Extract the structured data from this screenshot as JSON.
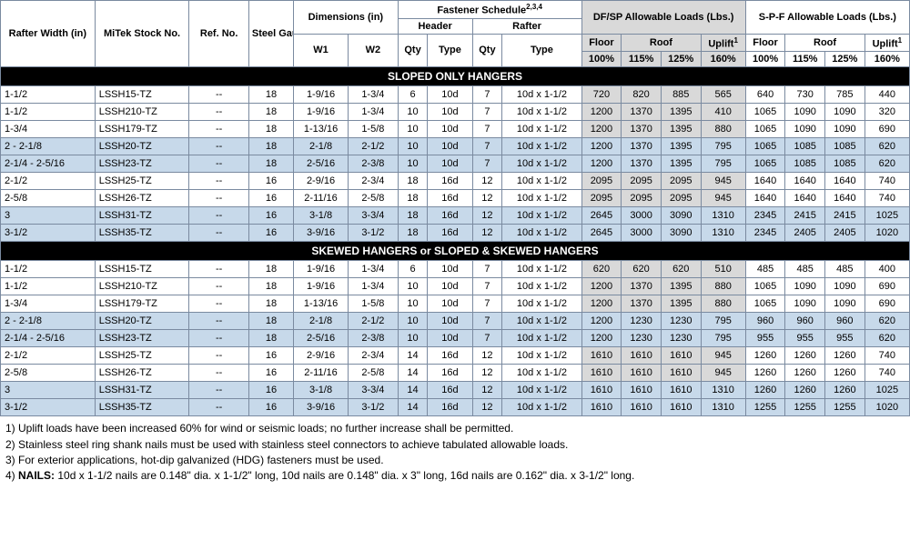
{
  "colWidths": [
    "95",
    "95",
    "60",
    "45",
    "55",
    "50",
    "30",
    "45",
    "30",
    "80",
    "40",
    "40",
    "40",
    "45",
    "40",
    "40",
    "40",
    "45"
  ],
  "header": {
    "l1": {
      "rafterWidth": "Rafter Width (in)",
      "mitek": "MiTek Stock No.",
      "refNo": "Ref. No.",
      "steelGauge": "Steel Gauge",
      "dimensions": "Dimensions (in)",
      "fastener": "Fastener Schedule",
      "fastenerSup": "2,3,4",
      "dfsp": "DF/SP Allowable Loads (Lbs.)",
      "spf": "S-P-F Allowable Loads (Lbs.)"
    },
    "l2": {
      "w1": "W1",
      "w2": "W2",
      "header": "Header",
      "rafter": "Rafter",
      "floor": "Floor",
      "roof": "Roof",
      "uplift": "Uplift",
      "upliftSup": "1"
    },
    "l3": {
      "qty": "Qty",
      "type": "Type",
      "p100": "100%",
      "p115": "115%",
      "p125": "125%",
      "p160": "160%"
    }
  },
  "sections": [
    {
      "title": "SLOPED ONLY HANGERS",
      "rows": [
        {
          "shade": "",
          "cells": [
            "1-1/2",
            "LSSH15-TZ",
            "--",
            "18",
            "1-9/16",
            "1-3/4",
            "6",
            "10d",
            "7",
            "10d x 1-1/2",
            "720",
            "820",
            "885",
            "565",
            "640",
            "730",
            "785",
            "440"
          ]
        },
        {
          "shade": "",
          "cells": [
            "1-1/2",
            "LSSH210-TZ",
            "--",
            "18",
            "1-9/16",
            "1-3/4",
            "10",
            "10d",
            "7",
            "10d x 1-1/2",
            "1200",
            "1370",
            "1395",
            "410",
            "1065",
            "1090",
            "1090",
            "320"
          ]
        },
        {
          "shade": "",
          "cells": [
            "1-3/4",
            "LSSH179-TZ",
            "--",
            "18",
            "1-13/16",
            "1-5/8",
            "10",
            "10d",
            "7",
            "10d x 1-1/2",
            "1200",
            "1370",
            "1395",
            "880",
            "1065",
            "1090",
            "1090",
            "690"
          ]
        },
        {
          "shade": "blue",
          "cells": [
            "2 - 2-1/8",
            "LSSH20-TZ",
            "--",
            "18",
            "2-1/8",
            "2-1/2",
            "10",
            "10d",
            "7",
            "10d x 1-1/2",
            "1200",
            "1370",
            "1395",
            "795",
            "1065",
            "1085",
            "1085",
            "620"
          ]
        },
        {
          "shade": "blue",
          "cells": [
            "2-1/4 - 2-5/16",
            "LSSH23-TZ",
            "--",
            "18",
            "2-5/16",
            "2-3/8",
            "10",
            "10d",
            "7",
            "10d x 1-1/2",
            "1200",
            "1370",
            "1395",
            "795",
            "1065",
            "1085",
            "1085",
            "620"
          ]
        },
        {
          "shade": "",
          "cells": [
            "2-1/2",
            "LSSH25-TZ",
            "--",
            "16",
            "2-9/16",
            "2-3/4",
            "18",
            "16d",
            "12",
            "10d x 1-1/2",
            "2095",
            "2095",
            "2095",
            "945",
            "1640",
            "1640",
            "1640",
            "740"
          ]
        },
        {
          "shade": "",
          "cells": [
            "2-5/8",
            "LSSH26-TZ",
            "--",
            "16",
            "2-11/16",
            "2-5/8",
            "18",
            "16d",
            "12",
            "10d x 1-1/2",
            "2095",
            "2095",
            "2095",
            "945",
            "1640",
            "1640",
            "1640",
            "740"
          ]
        },
        {
          "shade": "blue",
          "cells": [
            "3",
            "LSSH31-TZ",
            "--",
            "16",
            "3-1/8",
            "3-3/4",
            "18",
            "16d",
            "12",
            "10d x 1-1/2",
            "2645",
            "3000",
            "3090",
            "1310",
            "2345",
            "2415",
            "2415",
            "1025"
          ]
        },
        {
          "shade": "blue",
          "cells": [
            "3-1/2",
            "LSSH35-TZ",
            "--",
            "16",
            "3-9/16",
            "3-1/2",
            "18",
            "16d",
            "12",
            "10d x 1-1/2",
            "2645",
            "3000",
            "3090",
            "1310",
            "2345",
            "2405",
            "2405",
            "1020"
          ]
        }
      ]
    },
    {
      "title": "SKEWED HANGERS or SLOPED & SKEWED HANGERS",
      "rows": [
        {
          "shade": "",
          "cells": [
            "1-1/2",
            "LSSH15-TZ",
            "--",
            "18",
            "1-9/16",
            "1-3/4",
            "6",
            "10d",
            "7",
            "10d x 1-1/2",
            "620",
            "620",
            "620",
            "510",
            "485",
            "485",
            "485",
            "400"
          ]
        },
        {
          "shade": "",
          "cells": [
            "1-1/2",
            "LSSH210-TZ",
            "--",
            "18",
            "1-9/16",
            "1-3/4",
            "10",
            "10d",
            "7",
            "10d x 1-1/2",
            "1200",
            "1370",
            "1395",
            "880",
            "1065",
            "1090",
            "1090",
            "690"
          ]
        },
        {
          "shade": "",
          "cells": [
            "1-3/4",
            "LSSH179-TZ",
            "--",
            "18",
            "1-13/16",
            "1-5/8",
            "10",
            "10d",
            "7",
            "10d x 1-1/2",
            "1200",
            "1370",
            "1395",
            "880",
            "1065",
            "1090",
            "1090",
            "690"
          ]
        },
        {
          "shade": "blue",
          "cells": [
            "2 - 2-1/8",
            "LSSH20-TZ",
            "--",
            "18",
            "2-1/8",
            "2-1/2",
            "10",
            "10d",
            "7",
            "10d x 1-1/2",
            "1200",
            "1230",
            "1230",
            "795",
            "960",
            "960",
            "960",
            "620"
          ]
        },
        {
          "shade": "blue",
          "cells": [
            "2-1/4 - 2-5/16",
            "LSSH23-TZ",
            "--",
            "18",
            "2-5/16",
            "2-3/8",
            "10",
            "10d",
            "7",
            "10d x 1-1/2",
            "1200",
            "1230",
            "1230",
            "795",
            "955",
            "955",
            "955",
            "620"
          ]
        },
        {
          "shade": "",
          "cells": [
            "2-1/2",
            "LSSH25-TZ",
            "--",
            "16",
            "2-9/16",
            "2-3/4",
            "14",
            "16d",
            "12",
            "10d x 1-1/2",
            "1610",
            "1610",
            "1610",
            "945",
            "1260",
            "1260",
            "1260",
            "740"
          ]
        },
        {
          "shade": "",
          "cells": [
            "2-5/8",
            "LSSH26-TZ",
            "--",
            "16",
            "2-11/16",
            "2-5/8",
            "14",
            "16d",
            "12",
            "10d x 1-1/2",
            "1610",
            "1610",
            "1610",
            "945",
            "1260",
            "1260",
            "1260",
            "740"
          ]
        },
        {
          "shade": "blue",
          "cells": [
            "3",
            "LSSH31-TZ",
            "--",
            "16",
            "3-1/8",
            "3-3/4",
            "14",
            "16d",
            "12",
            "10d x 1-1/2",
            "1610",
            "1610",
            "1610",
            "1310",
            "1260",
            "1260",
            "1260",
            "1025"
          ]
        },
        {
          "shade": "blue",
          "cells": [
            "3-1/2",
            "LSSH35-TZ",
            "--",
            "16",
            "3-9/16",
            "3-1/2",
            "14",
            "16d",
            "12",
            "10d x 1-1/2",
            "1610",
            "1610",
            "1610",
            "1310",
            "1255",
            "1255",
            "1255",
            "1020"
          ]
        }
      ]
    }
  ],
  "greyCols": [
    10,
    11,
    12,
    13
  ],
  "notes": [
    "1) Uplift loads have been increased 60% for wind or seismic loads; no further increase shall be permitted.",
    "2) Stainless steel ring shank nails must be used with stainless steel connectors to achieve tabulated allowable loads.",
    "3) For exterior applications, hot-dip galvanized (HDG) fasteners must be used.",
    "4) NAILS: 10d x 1-1/2 nails are 0.148\" dia. x 1-1/2\" long, 10d nails are 0.148\" dia. x 3\" long, 16d nails are 0.162\" dia. x 3-1/2\" long."
  ]
}
